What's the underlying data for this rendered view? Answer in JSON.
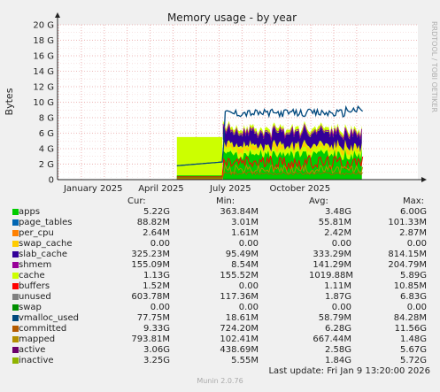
{
  "chart_data": {
    "type": "area",
    "title": "Memory usage - by year",
    "ylabel": "Bytes",
    "side_label": "RRDTOOL / TOBI OETIKER",
    "y_ticks": [
      "0",
      "2 G",
      "4 G",
      "6 G",
      "8 G",
      "10 G",
      "12 G",
      "14 G",
      "16 G",
      "18 G",
      "20 G"
    ],
    "ylim": [
      0,
      20
    ],
    "x_ticks": [
      "January 2025",
      "April 2025",
      "July 2025",
      "October 2025"
    ],
    "legend_headers": [
      "Cur:",
      "Min:",
      "Avg:",
      "Max:"
    ],
    "series": [
      {
        "name": "apps",
        "color": "#00cc00",
        "cur": "5.22G",
        "min": "363.84M",
        "avg": "3.48G",
        "max": "6.00G"
      },
      {
        "name": "page_tables",
        "color": "#0066b3",
        "cur": "88.82M",
        "min": "3.01M",
        "avg": "55.81M",
        "max": "101.33M"
      },
      {
        "name": "per_cpu",
        "color": "#ff8000",
        "cur": "2.64M",
        "min": "1.61M",
        "avg": "2.42M",
        "max": "2.87M"
      },
      {
        "name": "swap_cache",
        "color": "#ffcc00",
        "cur": "0.00",
        "min": "0.00",
        "avg": "0.00",
        "max": "0.00"
      },
      {
        "name": "slab_cache",
        "color": "#330099",
        "cur": "325.23M",
        "min": "95.49M",
        "avg": "333.29M",
        "max": "814.15M"
      },
      {
        "name": "shmem",
        "color": "#990099",
        "cur": "155.09M",
        "min": "8.54M",
        "avg": "141.29M",
        "max": "204.79M"
      },
      {
        "name": "cache",
        "color": "#ccff00",
        "cur": "1.13G",
        "min": "155.52M",
        "avg": "1019.88M",
        "max": "5.89G"
      },
      {
        "name": "buffers",
        "color": "#ff0000",
        "cur": "1.52M",
        "min": "0.00",
        "avg": "1.11M",
        "max": "10.85M"
      },
      {
        "name": "unused",
        "color": "#808080",
        "cur": "603.78M",
        "min": "117.36M",
        "avg": "1.87G",
        "max": "6.83G"
      },
      {
        "name": "swap",
        "color": "#008f00",
        "cur": "0.00",
        "min": "0.00",
        "avg": "0.00",
        "max": "0.00"
      },
      {
        "name": "vmalloc_used",
        "color": "#00487d",
        "cur": "77.75M",
        "min": "18.61M",
        "avg": "58.79M",
        "max": "84.28M"
      },
      {
        "name": "committed",
        "color": "#b35a00",
        "cur": "9.33G",
        "min": "724.20M",
        "avg": "6.28G",
        "max": "11.56G"
      },
      {
        "name": "mapped",
        "color": "#b38f00",
        "cur": "793.81M",
        "min": "102.41M",
        "avg": "667.44M",
        "max": "1.48G"
      },
      {
        "name": "active",
        "color": "#6b006b",
        "cur": "3.06G",
        "min": "438.69M",
        "avg": "2.58G",
        "max": "5.67G"
      },
      {
        "name": "inactive",
        "color": "#8fb300",
        "cur": "3.25G",
        "min": "5.55M",
        "avg": "1.84G",
        "max": "5.72G"
      }
    ],
    "legend_swatch_colors": [
      "#00cc00",
      "#0066b3",
      "#ff8000",
      "#ffcc00",
      "#330099",
      "#990099",
      "#ccff00",
      "#ff0000",
      "#808080",
      "#008f00",
      "#00487d",
      "#b35a00",
      "#b38f00",
      "#6b006b",
      "#8fb300"
    ],
    "plot_colors": {
      "apps": "#00cc00",
      "cache": "#ccff00",
      "committed": "#00487d",
      "active": "#ff0000",
      "inactive": "#b38f00",
      "mapped": "#b35a00",
      "slab_cache": "#330099",
      "unused": "#ccff00",
      "buffers": "#ff8000"
    },
    "grid": true,
    "last_update": "Last update: Fri Jan  9 13:20:00 2026",
    "footer": "Munin 2.0.76"
  }
}
